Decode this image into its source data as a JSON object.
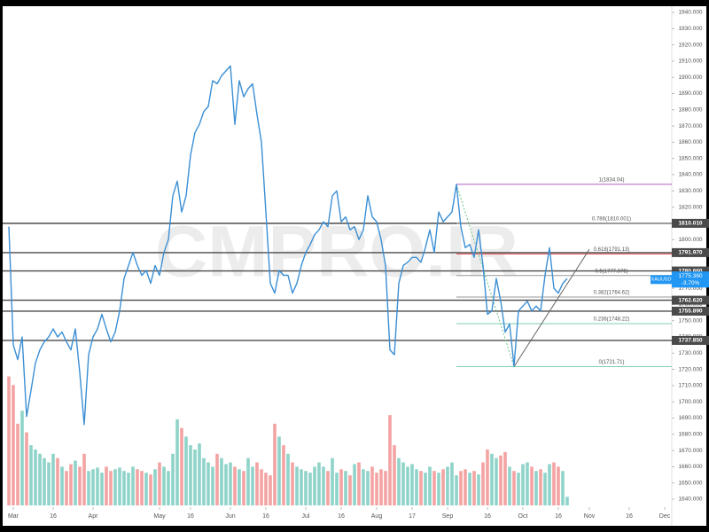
{
  "chart_data": {
    "type": "line",
    "watermark": "CMPRO.IR",
    "color": "#3b8fd4",
    "x": [
      1,
      2,
      3,
      4,
      5,
      6,
      7,
      8,
      9,
      10,
      11,
      12,
      13,
      14,
      15,
      16,
      17,
      18,
      19,
      20,
      21,
      22,
      23,
      24,
      25,
      26,
      27,
      28,
      29,
      30,
      31,
      32,
      33,
      34,
      35,
      36,
      37,
      38,
      39,
      40,
      41,
      42,
      43,
      44,
      45,
      46,
      47,
      48,
      49,
      50,
      51,
      52,
      53,
      54,
      55,
      56,
      57,
      58,
      59,
      60,
      61,
      62,
      63,
      64,
      65,
      66,
      67,
      68,
      69,
      70,
      71,
      72,
      73,
      74,
      75,
      76,
      77,
      78,
      79,
      80,
      81,
      82,
      83,
      84,
      85,
      86,
      87,
      88,
      89,
      90,
      91,
      92,
      93,
      94,
      95,
      96,
      97,
      98,
      99,
      100,
      101,
      102,
      103,
      104,
      105,
      106,
      107,
      108,
      109,
      110,
      111,
      112,
      113,
      114,
      115,
      116,
      117,
      118,
      119,
      120,
      121,
      122,
      123,
      124,
      125,
      126,
      127
    ],
    "values": [
      1808,
      1735,
      1726,
      1740,
      1691,
      1707,
      1724,
      1732,
      1737,
      1740,
      1745,
      1740,
      1743,
      1737,
      1732,
      1745,
      1718,
      1686,
      1729,
      1740,
      1745,
      1754,
      1745,
      1737,
      1743,
      1756,
      1776,
      1784,
      1792,
      1784,
      1778,
      1781,
      1773,
      1784,
      1778,
      1792,
      1800,
      1827,
      1836,
      1817,
      1827,
      1852,
      1866,
      1871,
      1879,
      1882,
      1898,
      1896,
      1901,
      1904,
      1907,
      1871,
      1898,
      1888,
      1893,
      1896,
      1877,
      1860,
      1817,
      1773,
      1767,
      1781,
      1778,
      1778,
      1767,
      1773,
      1784,
      1792,
      1797,
      1803,
      1806,
      1811,
      1808,
      1827,
      1830,
      1811,
      1814,
      1806,
      1808,
      1800,
      1806,
      1827,
      1814,
      1811,
      1800,
      1784,
      1732,
      1729,
      1773,
      1784,
      1786,
      1789,
      1789,
      1786,
      1795,
      1806,
      1792,
      1817,
      1811,
      1814,
      1817,
      1834,
      1808,
      1795,
      1797,
      1789,
      1806,
      1784,
      1754,
      1756,
      1776,
      1762,
      1743,
      1748,
      1722,
      1756,
      1759,
      1762,
      1756,
      1759,
      1756,
      1778,
      1795,
      1770,
      1767,
      1773,
      1776
    ],
    "volume": {
      "up_color": "#8fd3c9",
      "down_color": "#f4a3a3",
      "values": [
        150,
        140,
        95,
        110,
        85,
        70,
        65,
        60,
        55,
        50,
        60,
        55,
        45,
        40,
        48,
        52,
        45,
        60,
        40,
        42,
        44,
        38,
        45,
        40,
        42,
        44,
        40,
        38,
        45,
        42,
        40,
        38,
        36,
        42,
        50,
        45,
        40,
        60,
        100,
        90,
        80,
        70,
        65,
        72,
        55,
        50,
        45,
        60,
        55,
        48,
        50,
        45,
        42,
        40,
        55,
        45,
        50,
        42,
        38,
        35,
        95,
        80,
        70,
        60,
        50,
        45,
        42,
        40,
        38,
        45,
        50,
        45,
        40,
        55,
        38,
        42,
        40,
        35,
        48,
        50,
        42,
        40,
        45,
        38,
        42,
        40,
        105,
        70,
        55,
        50,
        45,
        48,
        42,
        40,
        38,
        45,
        40,
        38,
        42,
        45,
        50,
        35,
        40,
        42,
        38,
        40,
        36,
        50,
        65,
        60,
        55,
        58,
        62,
        45,
        40,
        38,
        48,
        50,
        45,
        40,
        42,
        38,
        48,
        50,
        45,
        40,
        10
      ]
    },
    "xlim": [
      0,
      150
    ],
    "ylim": [
      1640,
      1940
    ],
    "xticks": [
      {
        "value": 2,
        "label": "Mar"
      },
      {
        "value": 11,
        "label": "16"
      },
      {
        "value": 20,
        "label": "Apr"
      },
      {
        "value": 35,
        "label": "May"
      },
      {
        "value": 42,
        "label": "16"
      },
      {
        "value": 51,
        "label": "Jun"
      },
      {
        "value": 59,
        "label": "16"
      },
      {
        "value": 68,
        "label": "Jul"
      },
      {
        "value": 76,
        "label": "16"
      },
      {
        "value": 84,
        "label": "Aug"
      },
      {
        "value": 92,
        "label": "17"
      },
      {
        "value": 100,
        "label": "Sep"
      },
      {
        "value": 109,
        "label": "16"
      },
      {
        "value": 117,
        "label": "Oct"
      },
      {
        "value": 125,
        "label": "16"
      },
      {
        "value": 132,
        "label": "Nov"
      },
      {
        "value": 141,
        "label": "16"
      },
      {
        "value": 149,
        "label": "Dec"
      }
    ],
    "yticks": [
      {
        "value": 1640,
        "label": "1640.000"
      },
      {
        "value": 1650,
        "label": "1650.000"
      },
      {
        "value": 1660,
        "label": "1660.000"
      },
      {
        "value": 1670,
        "label": "1670.000"
      },
      {
        "value": 1680,
        "label": "1680.000"
      },
      {
        "value": 1690,
        "label": "1690.000"
      },
      {
        "value": 1700,
        "label": "1700.000"
      },
      {
        "value": 1710,
        "label": "1710.000"
      },
      {
        "value": 1720,
        "label": "1720.000"
      },
      {
        "value": 1730,
        "label": "1730.000"
      },
      {
        "value": 1740,
        "label": "1740.000"
      },
      {
        "value": 1750,
        "label": "1750.000"
      },
      {
        "value": 1760,
        "label": "1760.000"
      },
      {
        "value": 1770,
        "label": "1770.000"
      },
      {
        "value": 1780,
        "label": "1780.000"
      },
      {
        "value": 1790,
        "label": "1790.000"
      },
      {
        "value": 1800,
        "label": "1800.000"
      },
      {
        "value": 1810,
        "label": "1810.000"
      },
      {
        "value": 1820,
        "label": "1820.000"
      },
      {
        "value": 1830,
        "label": "1830.000"
      },
      {
        "value": 1840,
        "label": "1840.000"
      },
      {
        "value": 1850,
        "label": "1850.000"
      },
      {
        "value": 1860,
        "label": "1860.000"
      },
      {
        "value": 1870,
        "label": "1870.000"
      },
      {
        "value": 1880,
        "label": "1880.000"
      },
      {
        "value": 1890,
        "label": "1890.000"
      },
      {
        "value": 1900,
        "label": "1900.000"
      },
      {
        "value": 1910,
        "label": "1910.000"
      },
      {
        "value": 1920,
        "label": "1920.000"
      },
      {
        "value": 1930,
        "label": "1930.000"
      },
      {
        "value": 1940,
        "label": "1940.000"
      }
    ],
    "h_lines": {
      "color": "#4a4a4a",
      "levels": [
        {
          "value": 1810.01,
          "label": "1810.010"
        },
        {
          "value": 1791.97,
          "label": "1791.970"
        },
        {
          "value": 1780.66,
          "label": "1780.660"
        },
        {
          "value": 1762.62,
          "label": "1762.620"
        },
        {
          "value": 1755.89,
          "label": "1755.890"
        },
        {
          "value": 1737.85,
          "label": "1737.850"
        }
      ]
    },
    "last_price": {
      "value": 1775.36,
      "label": "1775.360",
      "symbol": "XAUUSD",
      "change": "-3.70%",
      "color": "#2196f3"
    },
    "fib": {
      "x_start": 102,
      "levels": [
        {
          "value": 1834.04,
          "label": "1(1834.04)",
          "color": "#b05cc4"
        },
        {
          "value": 1810.001,
          "label": "0.786(1810.001)",
          "color": "#999999"
        },
        {
          "value": 1791.13,
          "label": "0.618(1791.13)",
          "color": "#e04848"
        },
        {
          "value": 1777.875,
          "label": "0.5(1777.875)",
          "color": "#999999"
        },
        {
          "value": 1764.62,
          "label": "0.382(1764.62)",
          "color": "#999999"
        },
        {
          "value": 1748.22,
          "label": "0.236(1748.22)",
          "color": "#7fcfb0"
        },
        {
          "value": 1721.71,
          "label": "0(1721.71)",
          "color": "#7fcfb0"
        }
      ]
    },
    "trend_lines": [
      {
        "x": [
          102,
          115
        ],
        "y": [
          1834.04,
          1721.71
        ],
        "color": "#6cc28a",
        "dashed": true
      },
      {
        "x": [
          115,
          132
        ],
        "y": [
          1721.71,
          1794
        ],
        "color": "#666666",
        "dashed": false
      }
    ]
  }
}
